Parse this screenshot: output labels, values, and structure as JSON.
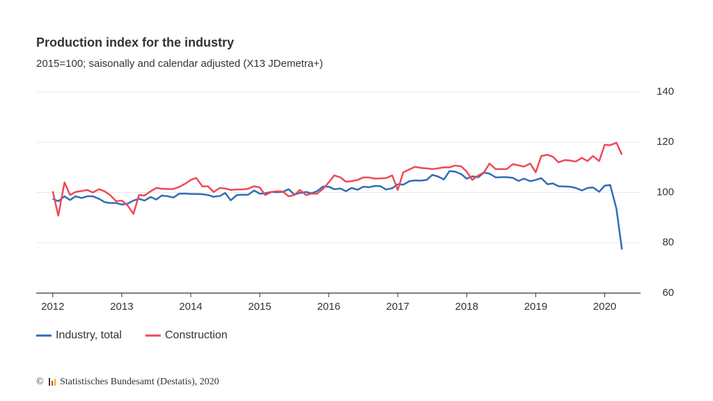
{
  "chart_data": {
    "type": "line",
    "title": "Production index for the industry",
    "subtitle": "2015=100; saisonally and calendar adjusted (X13 JDemetra+)",
    "x": [
      2012.0,
      2012.08,
      2012.17,
      2012.25,
      2012.33,
      2012.42,
      2012.5,
      2012.58,
      2012.67,
      2012.75,
      2012.83,
      2012.92,
      2013.0,
      2013.08,
      2013.17,
      2013.25,
      2013.33,
      2013.42,
      2013.5,
      2013.58,
      2013.67,
      2013.75,
      2013.83,
      2013.92,
      2014.0,
      2014.08,
      2014.17,
      2014.25,
      2014.33,
      2014.42,
      2014.5,
      2014.58,
      2014.67,
      2014.75,
      2014.83,
      2014.92,
      2015.0,
      2015.08,
      2015.17,
      2015.25,
      2015.33,
      2015.42,
      2015.5,
      2015.58,
      2015.67,
      2015.75,
      2015.83,
      2015.92,
      2016.0,
      2016.08,
      2016.17,
      2016.25,
      2016.33,
      2016.42,
      2016.5,
      2016.58,
      2016.67,
      2016.75,
      2016.83,
      2016.92,
      2017.0,
      2017.08,
      2017.17,
      2017.25,
      2017.33,
      2017.42,
      2017.5,
      2017.58,
      2017.67,
      2017.75,
      2017.83,
      2017.92,
      2018.0,
      2018.08,
      2018.17,
      2018.25,
      2018.33,
      2018.42,
      2018.5,
      2018.58,
      2018.67,
      2018.75,
      2018.83,
      2018.92,
      2019.0,
      2019.08,
      2019.17,
      2019.25,
      2019.33,
      2019.42,
      2019.5,
      2019.58,
      2019.67,
      2019.75,
      2019.83,
      2019.92,
      2020.0,
      2020.08,
      2020.17,
      2020.25
    ],
    "series": [
      {
        "name": "Industry, total",
        "color": "#2f6db5",
        "values": [
          97.5,
          96.5,
          98.5,
          97,
          98.5,
          97.8,
          98.5,
          98.5,
          97.5,
          96.2,
          95.8,
          95.8,
          95.2,
          95.5,
          96.8,
          97.5,
          96.8,
          98.2,
          97.2,
          98.8,
          98.5,
          98,
          99.5,
          99.6,
          99.4,
          99.4,
          99.3,
          99,
          98.3,
          98.6,
          99.8,
          96.9,
          99,
          99.1,
          99.1,
          100.8,
          99.5,
          99.7,
          100.2,
          100.1,
          100.2,
          101.3,
          99.2,
          99.8,
          100.2,
          99.7,
          100.5,
          102.4,
          102.3,
          101.3,
          101.6,
          100.5,
          101.8,
          101.1,
          102.3,
          102.1,
          102.6,
          102.5,
          101.2,
          101.7,
          103.3,
          103.1,
          104.5,
          104.8,
          104.7,
          105,
          107,
          106.4,
          105.2,
          108.5,
          108.3,
          107.3,
          105.5,
          106.4,
          106.1,
          107.9,
          107.5,
          106,
          106.1,
          106.1,
          105.8,
          104.6,
          105.5,
          104.5,
          105,
          105.7,
          103.3,
          103.6,
          102.5,
          102.4,
          102.3,
          101.8,
          100.8,
          101.8,
          102,
          100.3,
          102.7,
          103,
          93.5,
          77.3
        ]
      },
      {
        "name": "Construction",
        "color": "#ee4a55",
        "values": [
          100.5,
          90.8,
          104,
          99,
          100.2,
          100.6,
          101,
          100,
          101.3,
          100.5,
          99,
          96.5,
          96.8,
          95,
          91.5,
          99,
          98.8,
          100.5,
          101.8,
          101.5,
          101.4,
          101.4,
          102.2,
          103.5,
          105,
          105.8,
          102.4,
          102.5,
          100.2,
          101.8,
          101.6,
          101,
          101.2,
          101.2,
          101.5,
          102.5,
          102,
          99,
          100.2,
          100.5,
          100.4,
          98.5,
          99,
          101,
          99,
          99.5,
          99.5,
          101.5,
          104,
          106.8,
          106,
          104.3,
          104.5,
          105,
          106,
          106,
          105.5,
          105.6,
          105.7,
          106.8,
          101,
          108,
          109.2,
          110.2,
          109.8,
          109.6,
          109.3,
          109.6,
          110,
          110,
          110.7,
          110.4,
          108.3,
          105,
          106.8,
          108,
          111.5,
          109.3,
          109.3,
          109.3,
          111.3,
          110.8,
          110.3,
          111.5,
          108,
          114.5,
          115,
          114.2,
          112,
          112.9,
          112.7,
          112.3,
          113.8,
          112.5,
          114.5,
          112.5,
          119,
          118.8,
          119.8,
          115
        ]
      }
    ],
    "xlim": [
      2011.76,
      2020.52
    ],
    "xticks": [
      2012,
      2013,
      2014,
      2015,
      2016,
      2017,
      2018,
      2019,
      2020
    ],
    "ylim": [
      60,
      140
    ],
    "yticks": [
      60,
      80,
      100,
      120,
      140
    ],
    "grid": true,
    "legend": "bottom-left",
    "copyright_symbol": "©",
    "source": "Statistisches Bundesamt (Destatis), 2020"
  }
}
